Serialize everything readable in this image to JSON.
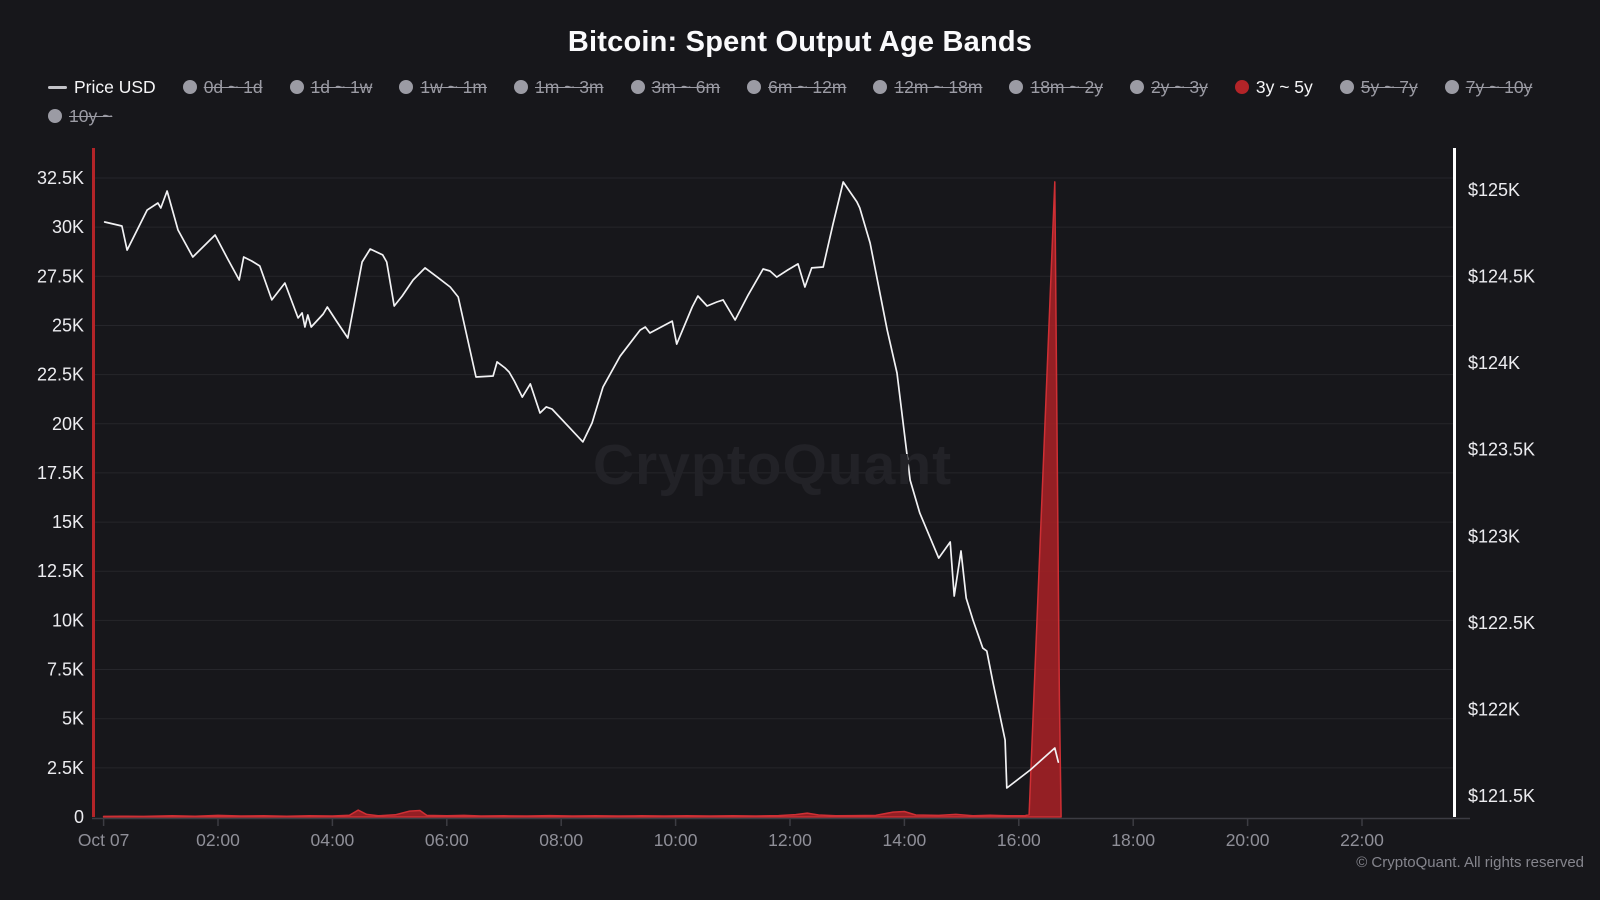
{
  "header": {
    "title": "Bitcoin: Spent Output Age Bands"
  },
  "watermark": {
    "text": "CryptoQuant"
  },
  "footer": {
    "copyright": "© CryptoQuant. All rights reserved"
  },
  "colors": {
    "background": "#17171b",
    "band_fill": "#a02125",
    "band_stroke": "#cf2f34",
    "price_line": "#f2f2f4",
    "left_axis_line": "#b32428",
    "right_axis_line": "#ffffff",
    "gridline": "#26262b",
    "baseline": "#3c3c43",
    "disabled_legend": "#9b9ba4"
  },
  "legend": {
    "items": [
      {
        "label": "Price USD",
        "icon": "line",
        "active": true,
        "color": "#c3c3c8"
      },
      {
        "label": "0d ~ 1d",
        "icon": "dot",
        "active": false,
        "color": "#9b9ba4"
      },
      {
        "label": "1d ~ 1w",
        "icon": "dot",
        "active": false,
        "color": "#9b9ba4"
      },
      {
        "label": "1w ~ 1m",
        "icon": "dot",
        "active": false,
        "color": "#9b9ba4"
      },
      {
        "label": "1m ~ 3m",
        "icon": "dot",
        "active": false,
        "color": "#9b9ba4"
      },
      {
        "label": "3m ~ 6m",
        "icon": "dot",
        "active": false,
        "color": "#9b9ba4"
      },
      {
        "label": "6m ~ 12m",
        "icon": "dot",
        "active": false,
        "color": "#9b9ba4"
      },
      {
        "label": "12m ~ 18m",
        "icon": "dot",
        "active": false,
        "color": "#9b9ba4"
      },
      {
        "label": "18m ~ 2y",
        "icon": "dot",
        "active": false,
        "color": "#9b9ba4"
      },
      {
        "label": "2y ~ 3y",
        "icon": "dot",
        "active": false,
        "color": "#9b9ba4"
      },
      {
        "label": "3y ~ 5y",
        "icon": "dot",
        "active": true,
        "color": "#b32428"
      },
      {
        "label": "5y ~ 7y",
        "icon": "dot",
        "active": false,
        "color": "#9b9ba4"
      },
      {
        "label": "7y ~ 10y",
        "icon": "dot",
        "active": false,
        "color": "#9b9ba4"
      },
      {
        "label": "10y ~",
        "icon": "dot",
        "active": false,
        "color": "#9b9ba4"
      }
    ]
  },
  "chart_data": {
    "type": "line",
    "title": "Bitcoin: Spent Output Age Bands",
    "grid": "horizontal-only",
    "x_axis": {
      "unit": "time",
      "range_hours": [
        0,
        23.6
      ],
      "ticks": [
        {
          "label": "Oct 07",
          "t": 0
        },
        {
          "label": "02:00",
          "t": 2
        },
        {
          "label": "04:00",
          "t": 4
        },
        {
          "label": "06:00",
          "t": 6
        },
        {
          "label": "08:00",
          "t": 8
        },
        {
          "label": "10:00",
          "t": 10
        },
        {
          "label": "12:00",
          "t": 12
        },
        {
          "label": "14:00",
          "t": 14
        },
        {
          "label": "16:00",
          "t": 16
        },
        {
          "label": "18:00",
          "t": 18
        },
        {
          "label": "20:00",
          "t": 20
        },
        {
          "label": "22:00",
          "t": 22
        }
      ]
    },
    "left_axis": {
      "range": [
        0,
        33800
      ],
      "ticks": [
        {
          "label": "0",
          "v": 0
        },
        {
          "label": "2.5K",
          "v": 2500
        },
        {
          "label": "5K",
          "v": 5000
        },
        {
          "label": "7.5K",
          "v": 7500
        },
        {
          "label": "10K",
          "v": 10000
        },
        {
          "label": "12.5K",
          "v": 12500
        },
        {
          "label": "15K",
          "v": 15000
        },
        {
          "label": "17.5K",
          "v": 17500
        },
        {
          "label": "20K",
          "v": 20000
        },
        {
          "label": "22.5K",
          "v": 22500
        },
        {
          "label": "25K",
          "v": 25000
        },
        {
          "label": "27.5K",
          "v": 27500
        },
        {
          "label": "30K",
          "v": 30000
        },
        {
          "label": "32.5K",
          "v": 32500
        }
      ]
    },
    "right_axis": {
      "range": [
        121.47,
        125.21
      ],
      "ticks": [
        {
          "label": "$121.5K",
          "v": 121.5
        },
        {
          "label": "$122K",
          "v": 122
        },
        {
          "label": "$122.5K",
          "v": 122.5
        },
        {
          "label": "$123K",
          "v": 123
        },
        {
          "label": "$123.5K",
          "v": 123.5
        },
        {
          "label": "$124K",
          "v": 124
        },
        {
          "label": "$124.5K",
          "v": 124.5
        },
        {
          "label": "$125K",
          "v": 125
        }
      ]
    },
    "series": [
      {
        "name": "3y ~ 5y",
        "type": "area",
        "axis": "left",
        "points": [
          [
            0.0,
            30
          ],
          [
            0.3,
            40
          ],
          [
            0.7,
            30
          ],
          [
            1.2,
            60
          ],
          [
            1.6,
            40
          ],
          [
            2.0,
            80
          ],
          [
            2.4,
            50
          ],
          [
            2.8,
            60
          ],
          [
            3.2,
            40
          ],
          [
            3.6,
            60
          ],
          [
            4.0,
            50
          ],
          [
            4.3,
            90
          ],
          [
            4.45,
            350
          ],
          [
            4.6,
            130
          ],
          [
            4.8,
            60
          ],
          [
            5.1,
            110
          ],
          [
            5.35,
            300
          ],
          [
            5.53,
            330
          ],
          [
            5.65,
            80
          ],
          [
            6.0,
            60
          ],
          [
            6.3,
            80
          ],
          [
            6.6,
            50
          ],
          [
            7.0,
            60
          ],
          [
            7.4,
            50
          ],
          [
            7.8,
            70
          ],
          [
            8.2,
            50
          ],
          [
            8.6,
            60
          ],
          [
            9.0,
            50
          ],
          [
            9.4,
            60
          ],
          [
            9.8,
            50
          ],
          [
            10.2,
            60
          ],
          [
            10.6,
            50
          ],
          [
            11.0,
            60
          ],
          [
            11.4,
            50
          ],
          [
            11.8,
            70
          ],
          [
            12.1,
            120
          ],
          [
            12.3,
            200
          ],
          [
            12.5,
            100
          ],
          [
            12.8,
            60
          ],
          [
            13.1,
            70
          ],
          [
            13.5,
            80
          ],
          [
            13.8,
            250
          ],
          [
            14.0,
            280
          ],
          [
            14.2,
            100
          ],
          [
            14.6,
            80
          ],
          [
            14.9,
            130
          ],
          [
            15.2,
            60
          ],
          [
            15.5,
            90
          ],
          [
            15.8,
            60
          ],
          [
            16.1,
            60
          ],
          [
            16.18,
            120
          ],
          [
            16.63,
            32300
          ],
          [
            16.71,
            6000
          ],
          [
            16.74,
            0
          ]
        ]
      },
      {
        "name": "Price USD",
        "type": "line",
        "axis": "right",
        "points": [
          [
            0.02,
            124.815
          ],
          [
            0.32,
            124.792
          ],
          [
            0.41,
            124.653
          ],
          [
            0.76,
            124.884
          ],
          [
            0.95,
            124.925
          ],
          [
            1.0,
            124.896
          ],
          [
            1.11,
            124.994
          ],
          [
            1.3,
            124.769
          ],
          [
            1.56,
            124.613
          ],
          [
            1.95,
            124.74
          ],
          [
            2.16,
            124.607
          ],
          [
            2.37,
            124.48
          ],
          [
            2.45,
            124.613
          ],
          [
            2.59,
            124.59
          ],
          [
            2.73,
            124.561
          ],
          [
            2.94,
            124.365
          ],
          [
            3.17,
            124.463
          ],
          [
            3.4,
            124.261
          ],
          [
            3.47,
            124.29
          ],
          [
            3.52,
            124.209
          ],
          [
            3.57,
            124.278
          ],
          [
            3.63,
            124.209
          ],
          [
            3.84,
            124.284
          ],
          [
            3.91,
            124.324
          ],
          [
            4.08,
            124.238
          ],
          [
            4.27,
            124.145
          ],
          [
            4.52,
            124.584
          ],
          [
            4.66,
            124.659
          ],
          [
            4.88,
            124.625
          ],
          [
            4.95,
            124.584
          ],
          [
            5.08,
            124.33
          ],
          [
            5.22,
            124.388
          ],
          [
            5.41,
            124.48
          ],
          [
            5.62,
            124.55
          ],
          [
            5.83,
            124.498
          ],
          [
            6.06,
            124.44
          ],
          [
            6.2,
            124.382
          ],
          [
            6.51,
            123.92
          ],
          [
            6.81,
            123.926
          ],
          [
            6.88,
            124.007
          ],
          [
            7.02,
            123.972
          ],
          [
            7.09,
            123.949
          ],
          [
            7.18,
            123.897
          ],
          [
            7.32,
            123.804
          ],
          [
            7.46,
            123.88
          ],
          [
            7.63,
            123.712
          ],
          [
            7.74,
            123.747
          ],
          [
            7.84,
            123.735
          ],
          [
            8.15,
            123.626
          ],
          [
            8.38,
            123.545
          ],
          [
            8.54,
            123.655
          ],
          [
            8.73,
            123.862
          ],
          [
            9.03,
            124.04
          ],
          [
            9.38,
            124.191
          ],
          [
            9.47,
            124.209
          ],
          [
            9.55,
            124.174
          ],
          [
            9.94,
            124.243
          ],
          [
            10.02,
            124.11
          ],
          [
            10.29,
            124.324
          ],
          [
            10.39,
            124.388
          ],
          [
            10.55,
            124.33
          ],
          [
            10.72,
            124.353
          ],
          [
            10.83,
            124.365
          ],
          [
            11.04,
            124.249
          ],
          [
            11.27,
            124.394
          ],
          [
            11.53,
            124.544
          ],
          [
            11.65,
            124.532
          ],
          [
            11.77,
            124.497
          ],
          [
            11.96,
            124.538
          ],
          [
            12.14,
            124.573
          ],
          [
            12.26,
            124.44
          ],
          [
            12.38,
            124.55
          ],
          [
            12.58,
            124.555
          ],
          [
            12.75,
            124.8
          ],
          [
            12.93,
            125.046
          ],
          [
            13.17,
            124.931
          ],
          [
            13.22,
            124.896
          ],
          [
            13.4,
            124.694
          ],
          [
            13.7,
            124.191
          ],
          [
            13.87,
            123.943
          ],
          [
            14.1,
            123.325
          ],
          [
            14.27,
            123.134
          ],
          [
            14.6,
            122.874
          ],
          [
            14.8,
            122.967
          ],
          [
            14.87,
            122.655
          ],
          [
            14.99,
            122.915
          ],
          [
            15.08,
            122.643
          ],
          [
            15.2,
            122.516
          ],
          [
            15.37,
            122.354
          ],
          [
            15.44,
            122.337
          ],
          [
            15.55,
            122.152
          ],
          [
            15.76,
            121.823
          ],
          [
            15.79,
            121.546
          ],
          [
            16.2,
            121.65
          ],
          [
            16.63,
            121.777
          ],
          [
            16.69,
            121.696
          ]
        ]
      }
    ]
  }
}
